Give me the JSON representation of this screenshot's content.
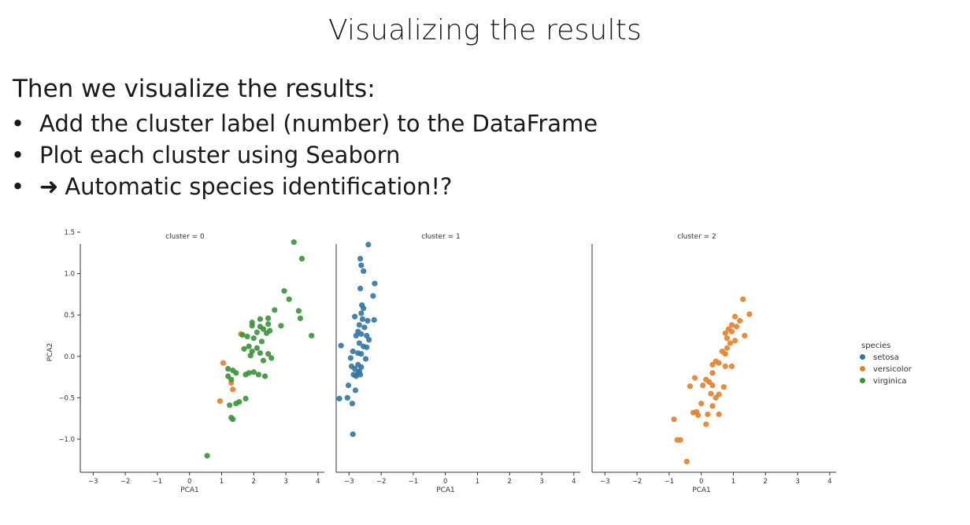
{
  "slide": {
    "title": "Visualizing the results",
    "intro": "Then we visualize the results:",
    "bullets": [
      {
        "text": "Add the cluster label (number) to the DataFrame"
      },
      {
        "text": "Plot each cluster using Seaborn"
      },
      {
        "arrow": "➜",
        "text": "Automatic species identification!?"
      }
    ]
  },
  "chart_data": {
    "type": "scatter",
    "panels": [
      "cluster = 0",
      "cluster = 1",
      "cluster = 2"
    ],
    "xlabel": "PCA1",
    "ylabel": "PCA2",
    "xlim": [
      -3.4,
      4.2
    ],
    "ylim": [
      -1.4,
      1.5
    ],
    "xticks": [
      -3,
      -2,
      -1,
      0,
      1,
      2,
      3,
      4
    ],
    "yticks": [
      -1.0,
      -0.5,
      0.0,
      0.5,
      1.0,
      1.5
    ],
    "tick_labels_x": [
      "−3",
      "−2",
      "−1",
      "0",
      "1",
      "2",
      "3",
      "4"
    ],
    "tick_labels_y": [
      "−1.0",
      "−0.5",
      "0.0",
      "0.5",
      "1.0",
      "1.5"
    ],
    "legend": {
      "title": "species",
      "placement": "right",
      "entries": [
        {
          "name": "setosa",
          "color": "#3274a1"
        },
        {
          "name": "versicolor",
          "color": "#e1812c"
        },
        {
          "name": "virginica",
          "color": "#3a923a"
        }
      ]
    },
    "series": [
      {
        "name": "setosa",
        "panel": 1,
        "color": "#3274a1",
        "points": [
          [
            -2.4,
            1.35
          ],
          [
            -2.65,
            1.18
          ],
          [
            -2.62,
            1.1
          ],
          [
            -2.55,
            1.03
          ],
          [
            -2.2,
            0.88
          ],
          [
            -2.65,
            0.82
          ],
          [
            -2.25,
            0.73
          ],
          [
            -2.6,
            0.62
          ],
          [
            -2.55,
            0.58
          ],
          [
            -2.62,
            0.52
          ],
          [
            -2.82,
            0.48
          ],
          [
            -2.58,
            0.45
          ],
          [
            -2.42,
            0.43
          ],
          [
            -2.22,
            0.44
          ],
          [
            -2.68,
            0.38
          ],
          [
            -2.52,
            0.35
          ],
          [
            -2.72,
            0.3
          ],
          [
            -2.62,
            0.27
          ],
          [
            -2.78,
            0.25
          ],
          [
            -2.45,
            0.25
          ],
          [
            -2.38,
            0.2
          ],
          [
            -2.68,
            0.16
          ],
          [
            -3.25,
            0.13
          ],
          [
            -2.55,
            0.12
          ],
          [
            -2.45,
            0.11
          ],
          [
            -2.88,
            0.06
          ],
          [
            -2.72,
            0.04
          ],
          [
            -2.62,
            0.03
          ],
          [
            -2.95,
            -0.02
          ],
          [
            -2.48,
            -0.03
          ],
          [
            -2.72,
            -0.1
          ],
          [
            -2.92,
            -0.12
          ],
          [
            -2.62,
            -0.13
          ],
          [
            -2.82,
            -0.15
          ],
          [
            -2.68,
            -0.18
          ],
          [
            -2.86,
            -0.22
          ],
          [
            -2.78,
            -0.24
          ],
          [
            -2.65,
            -0.22
          ],
          [
            -2.72,
            -0.2
          ],
          [
            -3.02,
            -0.35
          ],
          [
            -2.8,
            -0.41
          ],
          [
            -3.3,
            -0.51
          ],
          [
            -3.05,
            -0.5
          ],
          [
            -2.9,
            -0.57
          ],
          [
            -2.88,
            -0.94
          ]
        ]
      },
      {
        "name": "versicolor",
        "panel": 0,
        "color": "#e1812c",
        "points": [
          [
            1.6,
            0.27
          ],
          [
            1.05,
            -0.08
          ],
          [
            1.3,
            -0.32
          ],
          [
            1.35,
            -0.4
          ],
          [
            0.95,
            -0.54
          ]
        ]
      },
      {
        "name": "virginica",
        "panel": 0,
        "color": "#3a923a",
        "points": [
          [
            3.25,
            1.38
          ],
          [
            3.5,
            1.18
          ],
          [
            2.95,
            0.79
          ],
          [
            3.1,
            0.69
          ],
          [
            2.65,
            0.56
          ],
          [
            3.4,
            0.55
          ],
          [
            3.45,
            0.46
          ],
          [
            2.45,
            0.46
          ],
          [
            2.2,
            0.45
          ],
          [
            1.95,
            0.41
          ],
          [
            1.95,
            0.37
          ],
          [
            2.2,
            0.36
          ],
          [
            2.45,
            0.39
          ],
          [
            2.85,
            0.37
          ],
          [
            2.3,
            0.33
          ],
          [
            2.5,
            0.31
          ],
          [
            2.1,
            0.29
          ],
          [
            2.4,
            0.28
          ],
          [
            1.8,
            0.24
          ],
          [
            1.65,
            0.26
          ],
          [
            3.8,
            0.25
          ],
          [
            2.0,
            0.22
          ],
          [
            2.25,
            0.18
          ],
          [
            1.85,
            0.12
          ],
          [
            2.1,
            0.1
          ],
          [
            1.95,
            0.06
          ],
          [
            2.2,
            0.04
          ],
          [
            2.45,
            0.03
          ],
          [
            1.7,
            0.09
          ],
          [
            1.9,
            0.01
          ],
          [
            2.55,
            -0.02
          ],
          [
            2.3,
            -0.05
          ],
          [
            1.2,
            -0.15
          ],
          [
            1.35,
            -0.17
          ],
          [
            1.45,
            -0.2
          ],
          [
            1.2,
            -0.24
          ],
          [
            1.3,
            -0.28
          ],
          [
            1.85,
            -0.2
          ],
          [
            2.0,
            -0.19
          ],
          [
            1.75,
            -0.22
          ],
          [
            2.15,
            -0.22
          ],
          [
            2.35,
            -0.24
          ],
          [
            1.25,
            -0.59
          ],
          [
            1.45,
            -0.57
          ],
          [
            1.55,
            -0.55
          ],
          [
            1.75,
            -0.51
          ],
          [
            1.35,
            -0.76
          ],
          [
            1.3,
            -0.74
          ],
          [
            0.55,
            -1.2
          ]
        ]
      },
      {
        "name": "versicolor",
        "panel": 2,
        "color": "#e1812c",
        "points": [
          [
            1.3,
            0.69
          ],
          [
            1.5,
            0.51
          ],
          [
            1.05,
            0.48
          ],
          [
            1.2,
            0.43
          ],
          [
            0.95,
            0.38
          ],
          [
            1.1,
            0.36
          ],
          [
            0.85,
            0.33
          ],
          [
            0.95,
            0.3
          ],
          [
            1.35,
            0.25
          ],
          [
            0.75,
            0.28
          ],
          [
            0.8,
            0.22
          ],
          [
            1.05,
            0.19
          ],
          [
            0.9,
            0.16
          ],
          [
            0.8,
            0.1
          ],
          [
            0.65,
            0.06
          ],
          [
            0.75,
            0.03
          ],
          [
            0.45,
            -0.06
          ],
          [
            0.55,
            -0.08
          ],
          [
            0.35,
            -0.1
          ],
          [
            0.75,
            -0.12
          ],
          [
            0.95,
            -0.12
          ],
          [
            0.35,
            -0.2
          ],
          [
            -0.2,
            -0.26
          ],
          [
            0.15,
            -0.28
          ],
          [
            0.25,
            -0.31
          ],
          [
            0.35,
            -0.35
          ],
          [
            0.05,
            -0.35
          ],
          [
            0.3,
            -0.45
          ],
          [
            0.55,
            -0.46
          ],
          [
            0.45,
            -0.5
          ],
          [
            -0.35,
            -0.36
          ],
          [
            0.7,
            -0.37
          ],
          [
            0.0,
            -0.57
          ],
          [
            0.35,
            -0.6
          ],
          [
            -0.15,
            -0.67
          ],
          [
            0.2,
            -0.7
          ],
          [
            0.55,
            -0.7
          ],
          [
            -0.1,
            -0.71
          ],
          [
            -0.25,
            -0.68
          ],
          [
            0.15,
            -0.82
          ],
          [
            -0.85,
            -0.76
          ],
          [
            -0.75,
            -1.01
          ],
          [
            -0.65,
            -1.01
          ],
          [
            -0.45,
            -1.27
          ]
        ]
      }
    ]
  }
}
